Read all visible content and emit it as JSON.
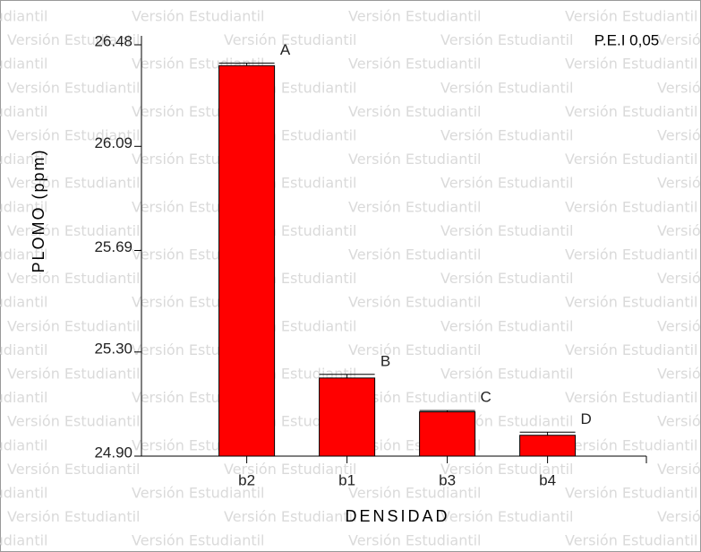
{
  "chart_data": {
    "type": "bar",
    "title": "P.E.I 0,05",
    "watermark": "Versión Estudiantil",
    "y_label": "PLOMO (ppm)",
    "x_label": "DENSIDAD",
    "categories": [
      "b2",
      "b1",
      "b3",
      "b4"
    ],
    "values": [
      26.4,
      25.2,
      25.07,
      24.98
    ],
    "errors": [
      0.01,
      0.014,
      0.005,
      0.012
    ],
    "labels": [
      "A",
      "B",
      "C",
      "D"
    ],
    "color": "#ff0000",
    "ylim": [
      24.9,
      26.48
    ],
    "yticks": [
      {
        "value": 24.9,
        "label": "24.90"
      },
      {
        "value": 25.3,
        "label": "25.30"
      },
      25.69,
      26.09,
      26.48
    ],
    "grid": false
  }
}
